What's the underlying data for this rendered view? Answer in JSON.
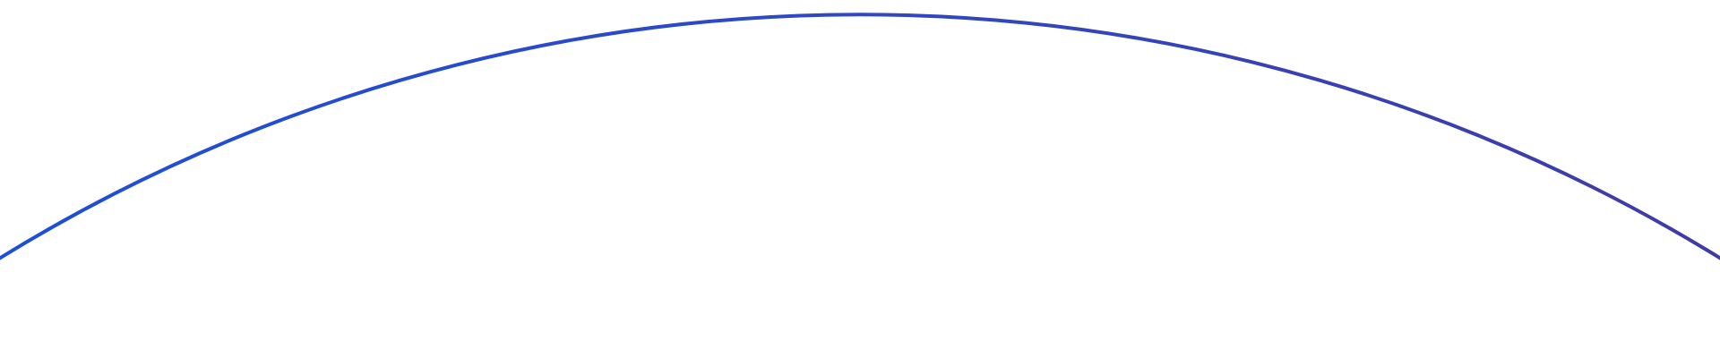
{
  "arc": {
    "color_start": "#1d4fd8",
    "color_mid": "#2f48c4",
    "color_end": "#3f3aa6"
  }
}
